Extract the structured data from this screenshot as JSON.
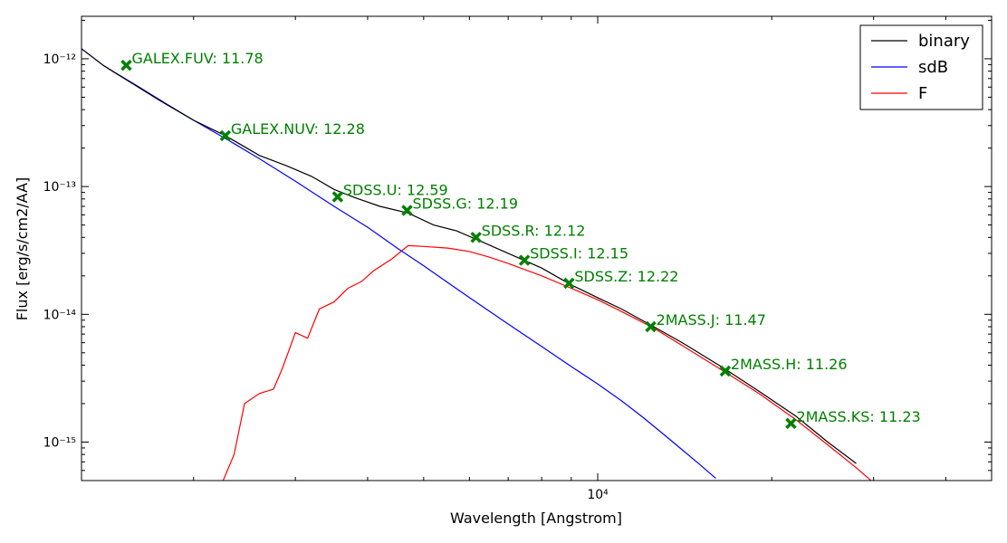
{
  "chart_data": {
    "type": "line",
    "xscale": "log",
    "yscale": "log",
    "xlim": [
      1280,
      48000
    ],
    "ylim": [
      5e-16,
      2.15e-12
    ],
    "xlabel": "Wavelength [Angstrom]",
    "ylabel": "Flux [erg/s/cm2/AA]",
    "x_tick_labels": [
      {
        "value": 10000,
        "text": "10⁴"
      }
    ],
    "y_tick_labels": [
      {
        "value": 1e-12,
        "text": "10⁻¹²"
      },
      {
        "value": 1e-13,
        "text": "10⁻¹³"
      },
      {
        "value": 1e-14,
        "text": "10⁻¹⁴"
      },
      {
        "value": 1e-15,
        "text": "10⁻¹⁵"
      }
    ],
    "legend": {
      "position": "top-right",
      "entries": [
        {
          "name": "binary",
          "color": "#000000"
        },
        {
          "name": "sdB",
          "color": "#0000ff"
        },
        {
          "name": "F",
          "color": "#ff0000"
        }
      ]
    },
    "series": [
      {
        "name": "binary",
        "color": "#000000",
        "points": [
          [
            1280,
            1.2e-12
          ],
          [
            1400,
            8.8e-13
          ],
          [
            1550,
            6.6e-13
          ],
          [
            1750,
            4.7e-13
          ],
          [
            2000,
            3.3e-13
          ],
          [
            2270,
            2.5e-13
          ],
          [
            2600,
            1.75e-13
          ],
          [
            2900,
            1.45e-13
          ],
          [
            3200,
            1.2e-13
          ],
          [
            3500,
            9.5e-14
          ],
          [
            3800,
            8.2e-14
          ],
          [
            4200,
            7e-14
          ],
          [
            4700,
            6.2e-14
          ],
          [
            5200,
            5e-14
          ],
          [
            5700,
            4.5e-14
          ],
          [
            6300,
            3.7e-14
          ],
          [
            7000,
            3e-14
          ],
          [
            8000,
            2.3e-14
          ],
          [
            9000,
            1.7e-14
          ],
          [
            10000,
            1.35e-14
          ],
          [
            11000,
            1.1e-14
          ],
          [
            12500,
            8e-15
          ],
          [
            14000,
            6e-15
          ],
          [
            16500,
            3.8e-15
          ],
          [
            19000,
            2.5e-15
          ],
          [
            22000,
            1.6e-15
          ],
          [
            25000,
            1e-15
          ],
          [
            28000,
            6.8e-16
          ]
        ]
      },
      {
        "name": "sdB",
        "color": "#0000ff",
        "points": [
          [
            1280,
            1.2e-12
          ],
          [
            1400,
            8.8e-13
          ],
          [
            1600,
            6.1e-13
          ],
          [
            1800,
            4.4e-13
          ],
          [
            2000,
            3.3e-13
          ],
          [
            2300,
            2.3e-13
          ],
          [
            2600,
            1.65e-13
          ],
          [
            3000,
            1.1e-13
          ],
          [
            3500,
            7e-14
          ],
          [
            4000,
            4.8e-14
          ],
          [
            4500,
            3.3e-14
          ],
          [
            5000,
            2.4e-14
          ],
          [
            6000,
            1.35e-14
          ],
          [
            7000,
            8.4e-15
          ],
          [
            8000,
            5.6e-15
          ],
          [
            9000,
            3.9e-15
          ],
          [
            10000,
            2.85e-15
          ],
          [
            11000,
            2.1e-15
          ],
          [
            12000,
            1.55e-15
          ],
          [
            13000,
            1.15e-15
          ],
          [
            14000,
            8.7e-16
          ],
          [
            15000,
            6.7e-16
          ],
          [
            16000,
            5.2e-16
          ]
        ]
      },
      {
        "name": "F",
        "color": "#ff0000",
        "points": [
          [
            2250,
            5e-16
          ],
          [
            2350,
            8e-16
          ],
          [
            2450,
            2e-15
          ],
          [
            2600,
            2.4e-15
          ],
          [
            2750,
            2.6e-15
          ],
          [
            2850,
            3.8e-15
          ],
          [
            3000,
            7.2e-15
          ],
          [
            3150,
            6.5e-15
          ],
          [
            3300,
            1.1e-14
          ],
          [
            3500,
            1.25e-14
          ],
          [
            3700,
            1.6e-14
          ],
          [
            3900,
            1.8e-14
          ],
          [
            4100,
            2.2e-14
          ],
          [
            4400,
            2.7e-14
          ],
          [
            4700,
            3.45e-14
          ],
          [
            5000,
            3.4e-14
          ],
          [
            5500,
            3.3e-14
          ],
          [
            6000,
            3.1e-14
          ],
          [
            6500,
            2.8e-14
          ],
          [
            7000,
            2.5e-14
          ],
          [
            8000,
            2e-14
          ],
          [
            9000,
            1.6e-14
          ],
          [
            10000,
            1.3e-14
          ],
          [
            11000,
            1.05e-14
          ],
          [
            12500,
            7.8e-15
          ],
          [
            14000,
            5.7e-15
          ],
          [
            16500,
            3.6e-15
          ],
          [
            19000,
            2.4e-15
          ],
          [
            22000,
            1.5e-15
          ],
          [
            25000,
            9.5e-16
          ],
          [
            28000,
            6.3e-16
          ],
          [
            30000,
            4.8e-16
          ]
        ]
      }
    ],
    "photometry": [
      {
        "label": "GALEX.FUV: 11.78",
        "x": 1530,
        "y": 8.9e-13
      },
      {
        "label": "GALEX.NUV: 12.28",
        "x": 2270,
        "y": 2.5e-13
      },
      {
        "label": "SDSS.U: 12.59",
        "x": 3550,
        "y": 8.3e-14
      },
      {
        "label": "SDSS.G: 12.19",
        "x": 4680,
        "y": 6.5e-14
      },
      {
        "label": "SDSS.R: 12.12",
        "x": 6160,
        "y": 4e-14
      },
      {
        "label": "SDSS.I: 12.15",
        "x": 7470,
        "y": 2.65e-14
      },
      {
        "label": "SDSS.Z: 12.22",
        "x": 8920,
        "y": 1.75e-14
      },
      {
        "label": "2MASS.J: 11.47",
        "x": 12350,
        "y": 8e-15
      },
      {
        "label": "2MASS.H: 11.26",
        "x": 16620,
        "y": 3.6e-15
      },
      {
        "label": "2MASS.KS: 11.23",
        "x": 21590,
        "y": 1.4e-15
      }
    ],
    "marker_color": "#008000"
  }
}
